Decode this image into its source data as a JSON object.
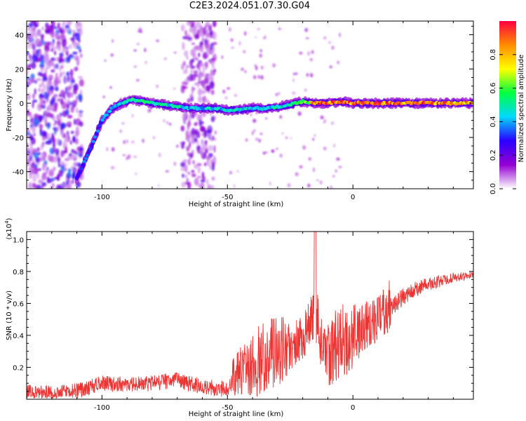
{
  "title": "C2E3.2024.051.07.30.G04",
  "chart_data": [
    {
      "type": "heatmap",
      "xlabel": "Height of straight line (km)",
      "ylabel": "Frequency (Hz)",
      "xlim": [
        -130,
        48
      ],
      "ylim": [
        -50,
        48
      ],
      "xticks": [
        -100,
        -50,
        0
      ],
      "xtick_labels": [
        "-100",
        "-50",
        "0"
      ],
      "yticks": [
        -40,
        -20,
        0,
        20,
        40
      ],
      "ytick_labels": [
        "-40",
        "-20",
        "0",
        "20",
        "40"
      ],
      "colorbar": {
        "label": "Normalized spectral amplitude",
        "range": [
          0,
          1
        ],
        "ticks": [
          0.0,
          0.2,
          0.4,
          0.6,
          0.8
        ],
        "tick_labels": [
          "0.0",
          "0.2",
          "0.4",
          "0.6",
          "0.8"
        ],
        "colors": [
          "#ffffff",
          "#9400d3",
          "#2a00ff",
          "#00d8ff",
          "#00ff40",
          "#ffff00",
          "#ff8c00",
          "#ff0040"
        ]
      },
      "ridge": {
        "x": [
          -110,
          -105,
          -100,
          -96,
          -92,
          -88,
          -84,
          -80,
          -75,
          -70,
          -65,
          -60,
          -55,
          -50,
          -45,
          -40,
          -35,
          -30,
          -25,
          -20,
          -15,
          -10,
          -5,
          0,
          10,
          20,
          30,
          40,
          48
        ],
        "y": [
          -44,
          -28,
          -10,
          -3,
          0,
          2,
          1,
          0,
          -1,
          -2,
          -3,
          -3,
          -3,
          -4,
          -4,
          -3,
          -3,
          -2,
          -1,
          1,
          0,
          0,
          1,
          0,
          0,
          0,
          0,
          0,
          0
        ],
        "amplitude": [
          0.35,
          0.35,
          0.4,
          0.45,
          0.5,
          0.55,
          0.55,
          0.55,
          0.5,
          0.5,
          0.45,
          0.45,
          0.45,
          0.5,
          0.5,
          0.45,
          0.45,
          0.5,
          0.55,
          0.6,
          0.9,
          0.95,
          0.95,
          0.95,
          0.95,
          0.95,
          0.95,
          0.9,
          0.9
        ]
      },
      "noise_bands_x": [
        [
          -130,
          -108
        ],
        [
          -68,
          -55
        ]
      ]
    },
    {
      "type": "line",
      "xlabel": "Height of straight line (km)",
      "ylabel": "SNR (10 * v/v)",
      "y_multiplier_label": "(x10",
      "y_multiplier_exp": "4",
      "xlim": [
        -130,
        48
      ],
      "ylim": [
        0,
        1.05
      ],
      "xticks": [
        -100,
        -50,
        0
      ],
      "xtick_labels": [
        "-100",
        "-50",
        "0"
      ],
      "yticks": [
        0.2,
        0.4,
        0.6,
        0.8,
        1.0
      ],
      "ytick_labels": [
        "0.2",
        "0.4",
        "0.6",
        "0.8",
        "1.0"
      ],
      "line_color": "#ee3333",
      "series": [
        {
          "x": [
            -130,
            -120,
            -110,
            -100,
            -90,
            -80,
            -70,
            -60,
            -50,
            -45,
            -40,
            -35,
            -30,
            -25,
            -20,
            -17,
            -15,
            -13,
            -10,
            -5,
            0,
            5,
            10,
            15,
            20,
            25,
            30,
            35,
            40,
            48
          ],
          "y": [
            0.04,
            0.04,
            0.05,
            0.1,
            0.09,
            0.1,
            0.12,
            0.08,
            0.06,
            0.18,
            0.22,
            0.26,
            0.3,
            0.34,
            0.38,
            0.5,
            0.55,
            0.4,
            0.3,
            0.36,
            0.4,
            0.46,
            0.5,
            0.58,
            0.64,
            0.69,
            0.72,
            0.74,
            0.76,
            0.78
          ]
        }
      ]
    }
  ]
}
